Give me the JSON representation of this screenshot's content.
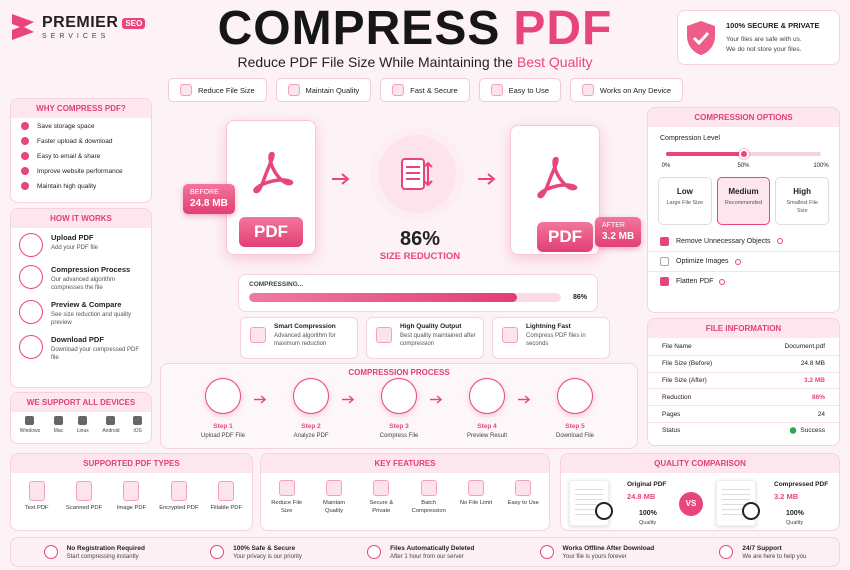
{
  "logo": {
    "name": "PREMIER",
    "badge": "SEO",
    "sub": "SERVICES"
  },
  "header": {
    "title_main": "COMPRESS",
    "title_accent": "PDF",
    "subtitle": "Reduce PDF File Size While Maintaining the",
    "subtitle_accent": "Best Quality"
  },
  "security": {
    "title": "100% SECURE & PRIVATE",
    "lines": [
      "Your files are safe with us.",
      "We do not store your files."
    ]
  },
  "feature_tabs": [
    "Reduce File Size",
    "Maintain Quality",
    "Fast & Secure",
    "Easy to Use",
    "Works on Any Device"
  ],
  "why": {
    "title": "WHY COMPRESS PDF?",
    "items": [
      "Save storage space",
      "Faster upload & download",
      "Easy to email & share",
      "Improve website performance",
      "Maintain high quality"
    ]
  },
  "how": {
    "title": "HOW IT WORKS",
    "steps": [
      {
        "title": "Upload PDF",
        "text": "Add your PDF file"
      },
      {
        "title": "Compression Process",
        "text": "Our advanced algorithm compresses the file"
      },
      {
        "title": "Preview & Compare",
        "text": "See size reduction and quality preview"
      },
      {
        "title": "Download PDF",
        "text": "Download your compressed PDF file"
      }
    ]
  },
  "devices": {
    "title": "WE SUPPORT ALL DEVICES",
    "items": [
      "Windows",
      "Mac",
      "Linux",
      "Android",
      "iOS"
    ]
  },
  "hero": {
    "before_label": "BEFORE",
    "before_size": "24.8 MB",
    "pdf": "PDF",
    "after_label": "AFTER",
    "after_size": "3.2 MB",
    "reduction": "86%",
    "reduction_label": "SIZE REDUCTION"
  },
  "progress": {
    "label": "COMPRESSING...",
    "value": 86,
    "value_label": "86%"
  },
  "highlights": [
    {
      "title": "Smart Compression",
      "text": "Advanced algorithm for maximum reduction"
    },
    {
      "title": "High Quality Output",
      "text": "Best quality maintained after compression"
    },
    {
      "title": "Lightning Fast",
      "text": "Compress PDF files in seconds"
    }
  ],
  "process": {
    "title": "COMPRESSION PROCESS",
    "steps": [
      {
        "step": "Step 1",
        "label": "Upload PDF File"
      },
      {
        "step": "Step 2",
        "label": "Analyze PDF"
      },
      {
        "step": "Step 3",
        "label": "Compress File"
      },
      {
        "step": "Step 4",
        "label": "Preview Result"
      },
      {
        "step": "Step 5",
        "label": "Download File"
      }
    ]
  },
  "options": {
    "title": "COMPRESSION OPTIONS",
    "level_label": "Compression Level",
    "level": 50,
    "ticks": [
      {
        "value": 0,
        "label": "0%"
      },
      {
        "value": 50,
        "label": "50%"
      },
      {
        "value": 100,
        "label": "100%"
      }
    ],
    "presets": [
      {
        "name": "Low",
        "text": "Large File Size"
      },
      {
        "name": "Medium",
        "text": "Recommended"
      },
      {
        "name": "High",
        "text": "Smallest File Size"
      }
    ],
    "checks": [
      {
        "label": "Remove Unnecessary Objects",
        "checked": true
      },
      {
        "label": "Optimize Images",
        "checked": false
      },
      {
        "label": "Flatten PDF",
        "checked": true
      }
    ]
  },
  "info": {
    "title": "FILE INFORMATION",
    "rows": [
      [
        "File Name",
        "Document.pdf"
      ],
      [
        "File Size (Before)",
        "24.8 MB"
      ],
      [
        "File Size (After)",
        "3.2 MB"
      ],
      [
        "Reduction",
        "86%"
      ],
      [
        "Pages",
        "24"
      ],
      [
        "Status",
        "Success"
      ]
    ]
  },
  "types": {
    "title": "SUPPORTED PDF TYPES",
    "items": [
      "Text PDF",
      "Scanned PDF",
      "Image PDF",
      "Encrypted PDF",
      "Fillable PDF"
    ]
  },
  "key_features": {
    "title": "KEY FEATURES",
    "items": [
      "Reduce File Size",
      "Maintain Quality",
      "Secure & Private",
      "Batch Compression",
      "No File Limit",
      "Easy to Use"
    ]
  },
  "quality": {
    "title": "QUALITY COMPARISON",
    "vs": "VS",
    "original": {
      "label": "Original PDF",
      "size": "24.8 MB",
      "quality": "100%",
      "quality_label": "Quality"
    },
    "compressed": {
      "label": "Compressed PDF",
      "size": "3.2 MB",
      "quality": "100%",
      "quality_label": "Quality"
    }
  },
  "footer": [
    {
      "title": "No Registration Required",
      "text": "Start compressing instantly"
    },
    {
      "title": "100% Safe & Secure",
      "text": "Your privacy is our priority"
    },
    {
      "title": "Files Automatically Deleted",
      "text": "After 1 hour from our server"
    },
    {
      "title": "Works Offline After Download",
      "text": "Your file is yours forever"
    },
    {
      "title": "24/7 Support",
      "text": "We are here to help you"
    }
  ]
}
